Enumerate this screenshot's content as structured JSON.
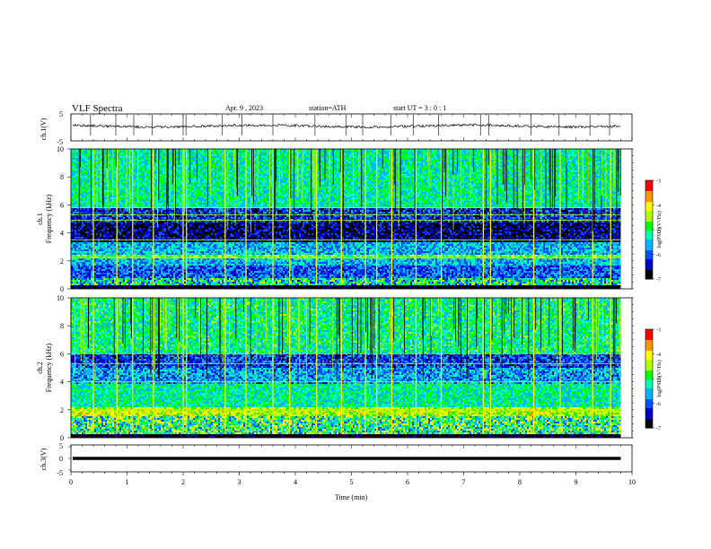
{
  "header": {
    "title": "VLF  Spectra",
    "date": "Apr. 9  , 2023",
    "station": "station=ATH",
    "start": "start  UT  =   3  : 0   : 1"
  },
  "chart_data": [
    {
      "type": "line",
      "panel": "ch1-waveform",
      "ylabel": "ch.1(V)",
      "ylim": [
        -5,
        5
      ],
      "y_tick_labels": [
        "5",
        "-5"
      ],
      "xlim": [
        0,
        10
      ],
      "trace_end_min": 9.8,
      "baseline_v": 0.5,
      "spike_min": [
        0.35,
        0.8,
        1.12,
        1.45,
        2.0,
        2.05,
        2.7,
        3.05,
        3.6,
        4.35,
        4.9,
        5.2,
        5.7,
        6.1,
        6.55,
        7.3,
        7.45,
        8.2,
        8.7,
        9.25,
        9.6
      ]
    },
    {
      "type": "heatmap",
      "panel": "ch1-spectrogram",
      "ylabel": "ch.1\nFrequency (kHz)",
      "ylabel_line1": "ch.1",
      "ylabel_line2": "Frequency  (kHz)",
      "ylim": [
        0,
        10
      ],
      "y_tick_labels": [
        "0",
        "2",
        "4",
        "6",
        "8",
        "10"
      ],
      "xlim": [
        0,
        10
      ],
      "data_end_min": 9.8,
      "colorbar": {
        "label": "log(PSD)(V²/Hz)",
        "range": [
          -7,
          -3
        ],
        "tick_labels": [
          "-3",
          "-4",
          "-5",
          "-6",
          "-7"
        ]
      },
      "bands_khz": [
        {
          "f0": 0.0,
          "f1": 0.25,
          "level": -7.0
        },
        {
          "f0": 0.25,
          "f1": 0.8,
          "level": -5.3,
          "mixed": true
        },
        {
          "f0": 0.8,
          "f1": 1.7,
          "level": -6.0
        },
        {
          "f0": 1.7,
          "f1": 2.15,
          "level": -5.6
        },
        {
          "f0": 2.15,
          "f1": 2.4,
          "level": -4.6
        },
        {
          "f0": 2.4,
          "f1": 3.3,
          "level": -5.6
        },
        {
          "f0": 3.3,
          "f1": 4.8,
          "level": -6.6
        },
        {
          "f0": 4.8,
          "f1": 5.8,
          "level": -6.2
        },
        {
          "f0": 5.8,
          "f1": 10.0,
          "level": -5.2
        }
      ],
      "lines_khz": [
        2.2,
        3.5,
        4.9,
        5.3,
        5.8
      ],
      "sferic_min": [
        0.4,
        0.82,
        1.1,
        1.47,
        2.0,
        2.06,
        2.75,
        3.12,
        3.6,
        3.9,
        4.38,
        4.82,
        5.25,
        5.45,
        5.72,
        6.15,
        6.6,
        7.35,
        7.48,
        8.25,
        8.72,
        9.3,
        9.62
      ]
    },
    {
      "type": "heatmap",
      "panel": "ch2-spectrogram",
      "ylabel": "ch.2\nFrequency (kHz)",
      "ylabel_line1": "ch.2",
      "ylabel_line2": "Frequency  (kHz)",
      "ylim": [
        0,
        10
      ],
      "y_tick_labels": [
        "0",
        "2",
        "4",
        "6",
        "8",
        "10"
      ],
      "xlim": [
        0,
        10
      ],
      "data_end_min": 9.8,
      "colorbar": {
        "label": "log(PSD)(V²/Hz)",
        "range": [
          -7,
          -3
        ],
        "tick_labels": [
          "-3",
          "-4",
          "-5",
          "-6",
          "-7"
        ]
      },
      "bands_khz": [
        {
          "f0": 0.0,
          "f1": 0.25,
          "level": -7.0
        },
        {
          "f0": 0.25,
          "f1": 1.6,
          "level": -5.0,
          "mixed": true
        },
        {
          "f0": 1.6,
          "f1": 2.2,
          "level": -4.3
        },
        {
          "f0": 2.2,
          "f1": 3.8,
          "level": -5.2
        },
        {
          "f0": 3.8,
          "f1": 5.0,
          "level": -5.7
        },
        {
          "f0": 5.0,
          "f1": 6.0,
          "level": -6.1
        },
        {
          "f0": 6.0,
          "f1": 10.0,
          "level": -5.1
        }
      ],
      "lines_khz": [
        1.9,
        2.0,
        4.0,
        5.3,
        6.0
      ],
      "sferic_min": [
        0.4,
        0.82,
        1.1,
        1.47,
        2.0,
        2.06,
        2.75,
        3.12,
        3.6,
        3.9,
        4.38,
        4.82,
        5.25,
        5.45,
        5.72,
        6.15,
        6.6,
        7.35,
        7.48,
        8.25,
        8.72,
        9.3,
        9.62
      ]
    },
    {
      "type": "line",
      "panel": "ch3-waveform",
      "ylabel": "ch.3(V)",
      "ylim": [
        -5,
        5
      ],
      "y_tick_labels": [
        "5",
        "0",
        "-5"
      ],
      "xlim": [
        0,
        10
      ],
      "trace_end_min": 9.8,
      "baseline_v": 0.0,
      "xlabel": "Time  (min)",
      "x_tick_labels": [
        "0",
        "1",
        "2",
        "3",
        "4",
        "5",
        "6",
        "7",
        "8",
        "9",
        "10"
      ]
    }
  ],
  "colors": {
    "colormap": [
      "#000000",
      "#0000c8",
      "#0050ff",
      "#00b4ff",
      "#00ffb4",
      "#00ff00",
      "#b4ff00",
      "#ffff00",
      "#ff9600",
      "#ff0000",
      "#ffffff"
    ]
  }
}
